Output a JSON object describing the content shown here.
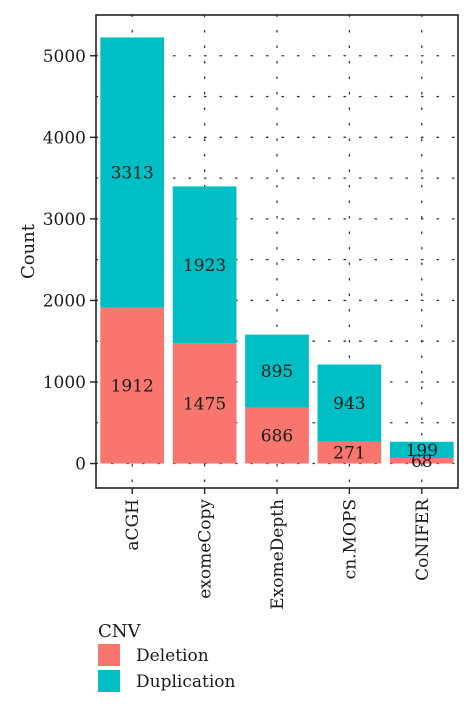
{
  "chart_data": {
    "type": "bar",
    "stacked": true,
    "categories": [
      "aCGH",
      "exomeCopy",
      "ExomeDepth",
      "cn.MOPS",
      "CoNIFER"
    ],
    "series": [
      {
        "name": "Deletion",
        "values": [
          1912,
          1475,
          686,
          271,
          68
        ],
        "color": "#F8766D"
      },
      {
        "name": "Duplication",
        "values": [
          3313,
          1923,
          895,
          943,
          199
        ],
        "color": "#00BFC4"
      }
    ],
    "data_labels": {
      "Deletion": [
        "1912",
        "1475",
        "686",
        "271",
        "68"
      ],
      "Duplication": [
        "3313",
        "1923",
        "895",
        "943",
        "199"
      ]
    },
    "ylabel": "Count",
    "xlabel": "",
    "ylim": [
      -300,
      5500
    ],
    "yticks": [
      0,
      1000,
      2000,
      3000,
      4000,
      5000
    ],
    "ytick_labels": [
      "0",
      "1000",
      "2000",
      "3000",
      "4000",
      "5000"
    ],
    "grid": "dotted",
    "legend": {
      "title": "CNV",
      "placement": "bottom-left",
      "items": [
        "Deletion",
        "Duplication"
      ]
    }
  }
}
